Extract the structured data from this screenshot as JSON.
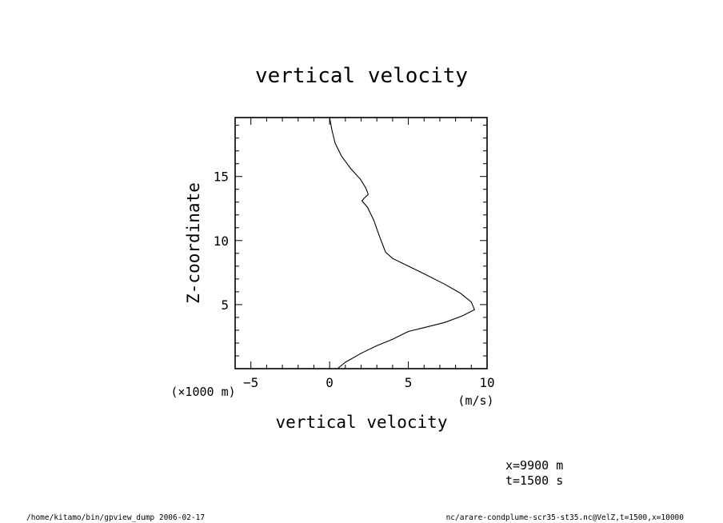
{
  "chart_data": {
    "type": "line",
    "title": "vertical velocity",
    "xlabel": "vertical velocity",
    "ylabel": "Z-coordinate",
    "x_unit": "(m/s)",
    "y_unit": "(×1000 m)",
    "xlim": [
      -6,
      10
    ],
    "ylim": [
      0,
      19.6
    ],
    "x_ticks": [
      -5,
      0,
      5,
      10
    ],
    "y_ticks": [
      5,
      10,
      15
    ],
    "grid": false,
    "series": [
      {
        "points": [
          [
            0.0,
            19.6
          ],
          [
            0.15,
            18.6
          ],
          [
            0.35,
            17.6
          ],
          [
            0.75,
            16.6
          ],
          [
            1.35,
            15.6
          ],
          [
            1.95,
            14.8
          ],
          [
            2.3,
            14.1
          ],
          [
            2.45,
            13.6
          ],
          [
            2.2,
            13.3
          ],
          [
            2.05,
            13.1
          ],
          [
            2.4,
            12.6
          ],
          [
            2.8,
            11.6
          ],
          [
            3.15,
            10.4
          ],
          [
            3.55,
            9.1
          ],
          [
            4.0,
            8.6
          ],
          [
            5.0,
            8.0
          ],
          [
            6.0,
            7.4
          ],
          [
            7.3,
            6.6
          ],
          [
            8.3,
            5.9
          ],
          [
            9.0,
            5.2
          ],
          [
            9.2,
            4.6
          ],
          [
            8.4,
            4.1
          ],
          [
            7.3,
            3.6
          ],
          [
            6.0,
            3.2
          ],
          [
            5.0,
            2.9
          ],
          [
            4.0,
            2.3
          ],
          [
            3.0,
            1.8
          ],
          [
            2.0,
            1.2
          ],
          [
            1.0,
            0.5
          ],
          [
            0.5,
            0.0
          ]
        ]
      }
    ]
  },
  "annotations": {
    "x_pos": "x=9900 m",
    "t_pos": "t=1500 s"
  },
  "footer": {
    "left": "/home/kitamo/bin/gpview_dump  2006-02-17",
    "right": "nc/arare-condplume-scr35-st35.nc@VelZ,t=1500,x=10000"
  }
}
